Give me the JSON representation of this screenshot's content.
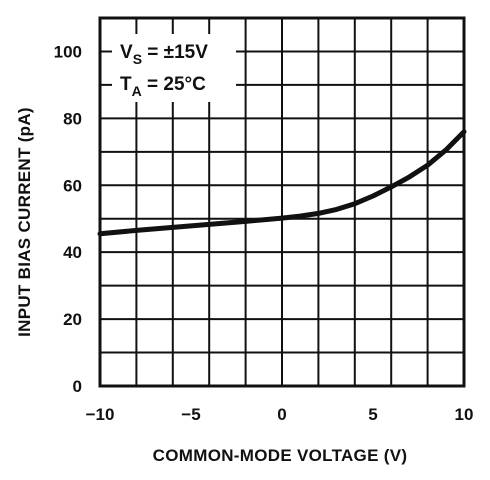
{
  "chart_data": {
    "type": "line",
    "xlabel": "COMMON-MODE VOLTAGE (V)",
    "ylabel": "INPUT BIAS CURRENT (pA)",
    "xlim": [
      -10,
      10
    ],
    "ylim": [
      0,
      110
    ],
    "x_ticks": [
      -10,
      -5,
      0,
      5,
      10
    ],
    "x_tick_labels": [
      "−10",
      "−5",
      "0",
      "5",
      "10"
    ],
    "y_ticks": [
      0,
      20,
      40,
      60,
      80,
      100
    ],
    "y_tick_labels": [
      "0",
      "20",
      "40",
      "60",
      "80",
      "100"
    ],
    "grid": true,
    "annotations": {
      "vs_main": "V",
      "vs_sub": "S",
      "vs_value": " = ±15V",
      "ta_main": "T",
      "ta_sub": "A",
      "ta_value": " = 25°C"
    },
    "series": [
      {
        "x": [
          -10,
          -8,
          -6,
          -4,
          -2,
          0,
          1,
          2,
          3,
          4,
          5,
          6,
          7,
          8,
          9,
          10
        ],
        "y": [
          45.5,
          46.5,
          47.4,
          48.3,
          49.2,
          50.2,
          50.8,
          51.6,
          52.8,
          54.5,
          56.8,
          59.5,
          62.5,
          66.0,
          70.5,
          76.0
        ]
      }
    ]
  }
}
